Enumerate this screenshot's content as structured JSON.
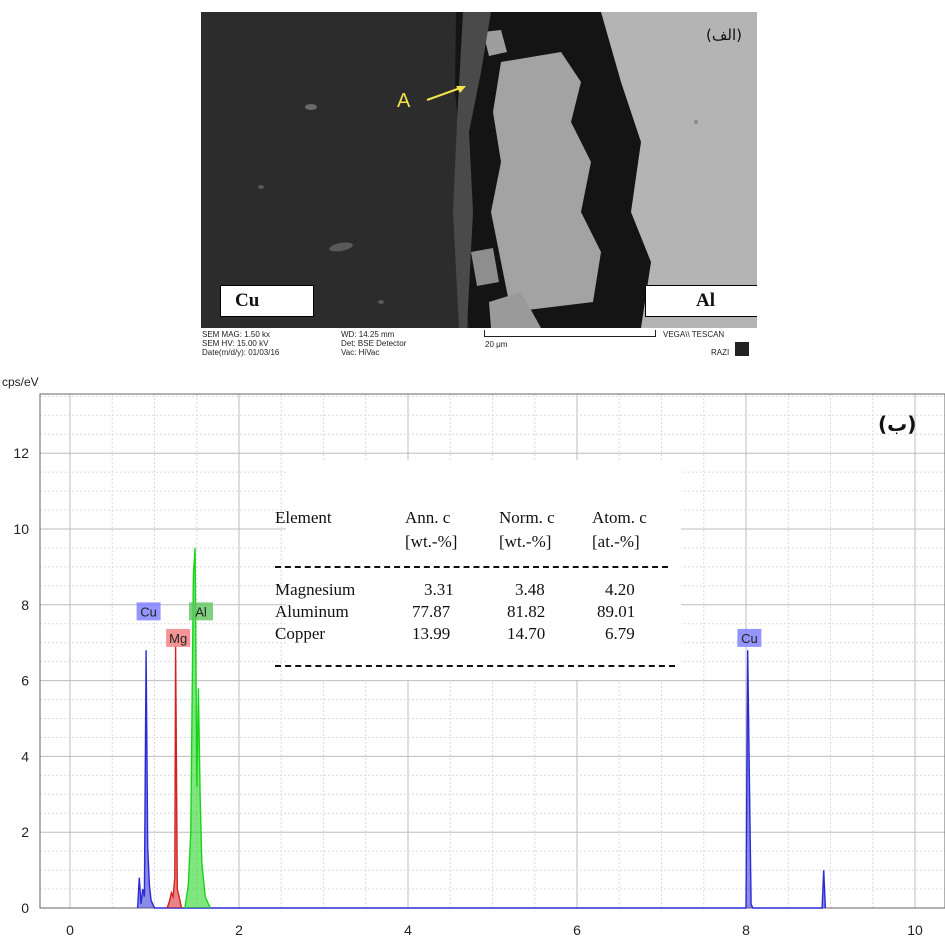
{
  "panel_a": {
    "label": "(الف)",
    "arrow_label": "A",
    "left_box": "Cu",
    "right_box": "Al",
    "databar": {
      "col1": [
        "SEM MAG: 1.50 kx",
        "SEM HV: 15.00 kV",
        "Date(m/d/y): 01/03/16"
      ],
      "col2": [
        "WD: 14.25 mm",
        "Det: BSE Detector",
        "Vac: HiVac"
      ],
      "scale": "20 μm",
      "brand": "VEGA\\\\ TESCAN",
      "razi": "RAZI"
    }
  },
  "panel_b_label": "(ب)",
  "chart_data": {
    "type": "line",
    "ylabel": "cps/eV",
    "xlabel": "",
    "xlim": [
      -0.5,
      10.3
    ],
    "ylim": [
      0,
      13.5
    ],
    "x_ticks": [
      0,
      2,
      4,
      6,
      8,
      10
    ],
    "y_ticks": [
      0,
      2,
      4,
      6,
      8,
      10,
      12
    ],
    "grid": true,
    "series": [
      {
        "name": "Cu",
        "color": "#2b2bd6",
        "x": [
          0.8,
          0.82,
          0.84,
          0.86,
          0.88,
          0.9,
          0.92,
          0.94,
          0.96,
          1.0,
          8.0,
          8.02,
          8.04,
          8.06,
          8.08,
          8.1,
          8.9,
          8.92,
          8.94
        ],
        "y": [
          0.0,
          0.8,
          0.1,
          0.5,
          0.3,
          6.8,
          1.6,
          0.6,
          0.2,
          0.0,
          0.0,
          6.8,
          3.4,
          0.1,
          0.0,
          0.0,
          0.0,
          1.0,
          0.0
        ]
      },
      {
        "name": "Mg",
        "color": "#d62020",
        "x": [
          1.15,
          1.18,
          1.2,
          1.22,
          1.24,
          1.25,
          1.27,
          1.3,
          1.32
        ],
        "y": [
          0.0,
          0.2,
          0.4,
          0.3,
          0.8,
          6.9,
          0.5,
          0.2,
          0.0
        ]
      },
      {
        "name": "Al",
        "color": "#18d418",
        "x": [
          1.36,
          1.4,
          1.43,
          1.46,
          1.48,
          1.5,
          1.52,
          1.54,
          1.56,
          1.6,
          1.66
        ],
        "y": [
          0.0,
          0.6,
          2.0,
          8.8,
          9.5,
          3.2,
          5.8,
          3.0,
          1.2,
          0.3,
          0.0
        ]
      }
    ],
    "peak_labels": [
      {
        "text": "Cu",
        "color": "#7b7bff",
        "x": 0.93,
        "y": 7.8
      },
      {
        "text": "Mg",
        "color": "#f07a7a",
        "x": 1.28,
        "y": 7.1
      },
      {
        "text": "Al",
        "color": "#5fc65f",
        "x": 1.55,
        "y": 7.8
      },
      {
        "text": "Cu",
        "color": "#7b7bff",
        "x": 8.04,
        "y": 7.1
      }
    ]
  },
  "table": {
    "headers": [
      "Element",
      "Ann. c",
      "Norm. c",
      "Atom. c"
    ],
    "units": [
      "",
      "[wt.-%]",
      "[wt.-%]",
      "[at.-%]"
    ],
    "rows": [
      [
        "Magnesium",
        "3.31",
        "3.48",
        "4.20"
      ],
      [
        "Aluminum",
        "77.87",
        "81.82",
        "89.01"
      ],
      [
        "Copper",
        "13.99",
        "14.70",
        "6.79"
      ]
    ]
  }
}
